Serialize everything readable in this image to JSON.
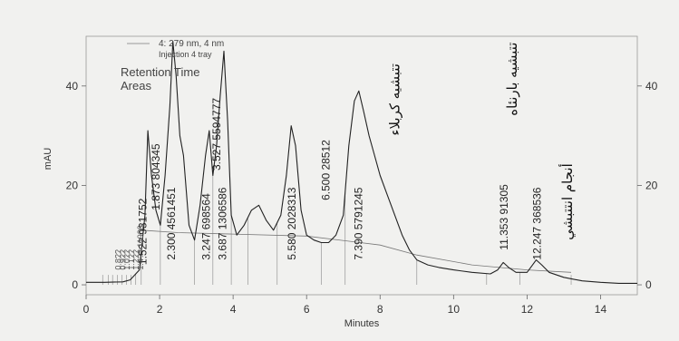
{
  "chart_data": {
    "type": "line",
    "xlabel": "Minutes",
    "ylabel": "mAU",
    "xlim": [
      0,
      15
    ],
    "ylim": [
      -2,
      50
    ],
    "x_ticks": [
      0,
      2,
      4,
      6,
      8,
      10,
      12,
      14
    ],
    "y_ticks": [
      0,
      20,
      40
    ],
    "grid": false,
    "legend": {
      "position": "top-left",
      "entries": [
        "4: 279 nm, 4 nm",
        "Injection 4 tray"
      ]
    },
    "annotation_headers": [
      "Retention Time",
      "Areas"
    ],
    "series": [
      {
        "x": [
          0,
          0.5,
          1.0,
          1.2,
          1.45,
          1.6,
          1.68,
          1.78,
          1.9,
          2.02,
          2.15,
          2.28,
          2.36,
          2.45,
          2.55,
          2.65,
          2.8,
          2.95,
          3.1,
          3.25,
          3.35,
          3.45,
          3.55,
          3.65,
          3.75,
          3.85,
          3.95,
          4.1,
          4.3,
          4.5,
          4.7,
          4.9,
          5.1,
          5.3,
          5.45,
          5.58,
          5.7,
          5.85,
          6.0,
          6.2,
          6.4,
          6.6,
          6.8,
          7.0,
          7.15,
          7.3,
          7.42,
          7.55,
          7.7,
          7.85,
          8.0,
          8.2,
          8.4,
          8.6,
          8.8,
          9.0,
          9.3,
          9.6,
          10.0,
          10.5,
          11.0,
          11.2,
          11.35,
          11.5,
          11.7,
          12.0,
          12.15,
          12.25,
          12.4,
          12.6,
          13.0,
          13.5,
          14.0,
          14.5,
          15.0
        ],
        "y": [
          0.5,
          0.5,
          0.6,
          1.0,
          3,
          14,
          31,
          22,
          15,
          12,
          22,
          36,
          49,
          42,
          30,
          26,
          12,
          9,
          16,
          26,
          31,
          22,
          28,
          38,
          47,
          33,
          14,
          10,
          12,
          15,
          16,
          13,
          11,
          14,
          22,
          32,
          28,
          15,
          10,
          9,
          8.5,
          8.5,
          10,
          14,
          28,
          37,
          39,
          35,
          30,
          26,
          22,
          18,
          14,
          10,
          7,
          5,
          4,
          3.5,
          3,
          2.5,
          2.2,
          3,
          4.5,
          3.5,
          2.5,
          2.5,
          4,
          5,
          4,
          2.5,
          1.5,
          0.8,
          0.5,
          0.3,
          0.3
        ]
      }
    ],
    "baseline": {
      "x": [
        1.5,
        2.5,
        4.0,
        6.0,
        8.0,
        9.0,
        10.5,
        12.0,
        13.2
      ],
      "y": [
        11,
        10.5,
        10.2,
        9.8,
        8,
        6,
        4,
        3,
        2.5
      ]
    },
    "peaks": [
      {
        "label": "1.522 931752",
        "x": 1.522
      },
      {
        "label": "1.873 804345",
        "x": 1.873
      },
      {
        "label": "2.300 4561451",
        "x": 2.3
      },
      {
        "label": "3.247 698564",
        "x": 3.247
      },
      {
        "label": "3.687 1306586",
        "x": 3.687
      },
      {
        "label": "3.527 5594777",
        "x": 3.527
      },
      {
        "label": "5.580 2028313",
        "x": 5.58
      },
      {
        "label": "6.500 28512",
        "x": 6.5
      },
      {
        "label": "7.390 5791245",
        "x": 7.39
      },
      {
        "label": "11.353 91305",
        "x": 11.353
      },
      {
        "label": "12.247 368536",
        "x": 12.247
      }
    ],
    "crowded_labels": [
      "1.4?? 11939",
      "1.2??",
      "1.1??",
      "1.0??",
      "0.9??",
      "0.8??"
    ],
    "compound_labels": [
      {
        "text": "تتبشيه كربلاء",
        "x": 8.4
      },
      {
        "text": "تتبشيه بارنئاه",
        "x": 11.6
      },
      {
        "text": "أنجام انتتبشي",
        "x": 13.1
      }
    ]
  }
}
